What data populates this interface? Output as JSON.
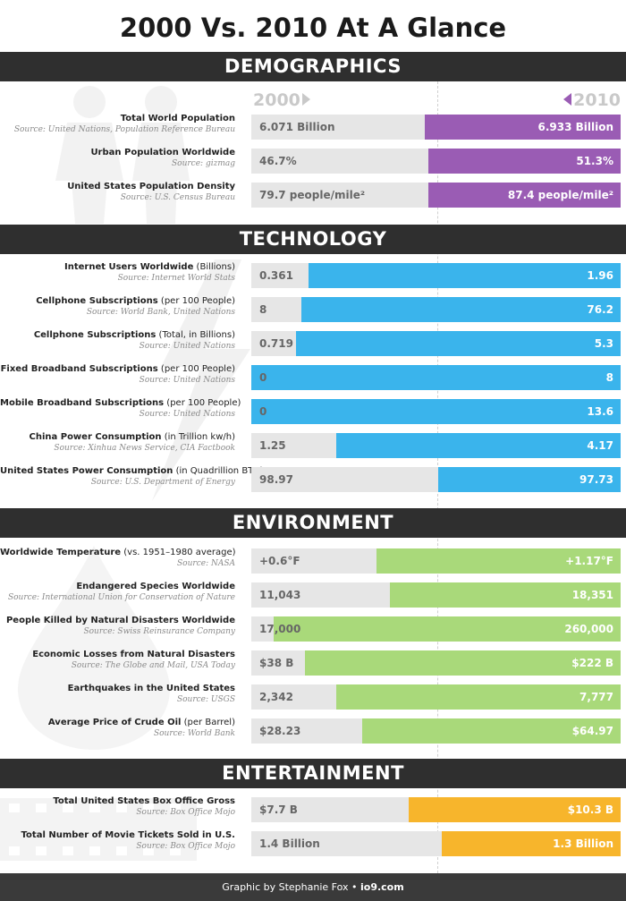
{
  "title": "2000 Vs. 2010 At A Glance",
  "year_labels": {
    "y2000": "2000",
    "y2010": "2010"
  },
  "colors": {
    "demographics": "#9a5cb4",
    "technology": "#3ab4ec",
    "environment": "#a9d97a",
    "entertainment": "#f7b52c"
  },
  "footer": {
    "credit": "Graphic by Stephanie Fox",
    "sep": "•",
    "site": "io9.com"
  },
  "chart_data": {
    "type": "bar",
    "sections": [
      {
        "name": "DEMOGRAPHICS",
        "color": "#9a5cb4",
        "rows": [
          {
            "label": "Total World Population",
            "sub": "",
            "source": "Source: United Nations, Population Reference Bureau",
            "v2000": "6.071 Billion",
            "v2010": "6.933 Billion",
            "fill": 0.53
          },
          {
            "label": "Urban Population Worldwide",
            "sub": "",
            "source": "Source: gizmag",
            "v2000": "46.7%",
            "v2010": "51.3%",
            "fill": 0.52
          },
          {
            "label": "United States Population Density",
            "sub": "",
            "source": "Source: U.S. Census Bureau",
            "v2000": "79.7 people/mile²",
            "v2010": "87.4 people/mile²",
            "fill": 0.52
          }
        ]
      },
      {
        "name": "TECHNOLOGY",
        "color": "#3ab4ec",
        "rows": [
          {
            "label": "Internet Users Worldwide",
            "sub": " (Billions)",
            "source": "Source: Internet World Stats",
            "v2000": "0.361",
            "v2010": "1.96",
            "fill": 0.845
          },
          {
            "label": "Cellphone Subscriptions",
            "sub": " (per 100 People)",
            "source": "Source: World Bank, United Nations",
            "v2000": "8",
            "v2010": "76.2",
            "fill": 0.865
          },
          {
            "label": "Cellphone Subscriptions",
            "sub": " (Total, in Billions)",
            "source": "Source: United Nations",
            "v2000": "0.719",
            "v2010": "5.3",
            "fill": 0.88
          },
          {
            "label": "Fixed Broadband Subscriptions",
            "sub": " (per 100 People)",
            "source": "Source: United Nations",
            "v2000": "0",
            "v2010": "8",
            "fill": 1.0
          },
          {
            "label": "Mobile Broadband Subscriptions",
            "sub": " (per 100 People)",
            "source": "Source: United Nations",
            "v2000": "0",
            "v2010": "13.6",
            "fill": 1.0
          },
          {
            "label": "China Power Consumption",
            "sub": " (in Trillion kw/h)",
            "source": "Source: Xinhua News Service, CIA Factbook",
            "v2000": "1.25",
            "v2010": "4.17",
            "fill": 0.77
          },
          {
            "label": "United States Power Consumption",
            "sub": " (in Quadrillion BTU)",
            "source": "Source: U.S. Department of Energy",
            "v2000": "98.97",
            "v2010": "97.73",
            "fill": 0.495
          }
        ]
      },
      {
        "name": "ENVIRONMENT",
        "color": "#a9d97a",
        "rows": [
          {
            "label": "Worldwide Temperature",
            "sub": " (vs. 1951–1980 average)",
            "source": "Source: NASA",
            "v2000": "+0.6°F",
            "v2010": "+1.17°F",
            "fill": 0.66
          },
          {
            "label": "Endangered Species Worldwide",
            "sub": "",
            "source": "Source: International Union for Conservation of Nature",
            "v2000": "11,043",
            "v2010": "18,351",
            "fill": 0.625
          },
          {
            "label": "People Killed by Natural Disasters Worldwide",
            "sub": "",
            "source": "Source: Swiss Reinsurance Company",
            "v2000": "17,000",
            "v2010": "260,000",
            "fill": 0.94
          },
          {
            "label": "Economic Losses from Natural Disasters",
            "sub": "",
            "source": "Source: The Globe and Mail, USA Today",
            "v2000": "$38 B",
            "v2010": "$222 B",
            "fill": 0.855
          },
          {
            "label": "Earthquakes in the United States",
            "sub": "",
            "source": "Source: USGS",
            "v2000": "2,342",
            "v2010": "7,777",
            "fill": 0.77
          },
          {
            "label": "Average Price of Crude Oil",
            "sub": " (per Barrel)",
            "source": "Source: World Bank",
            "v2000": "$28.23",
            "v2010": "$64.97",
            "fill": 0.7
          }
        ]
      },
      {
        "name": "ENTERTAINMENT",
        "color": "#f7b52c",
        "rows": [
          {
            "label": "Total United States Box Office Gross",
            "sub": "",
            "source": "Source: Box Office Mojo",
            "v2000": "$7.7 B",
            "v2010": "$10.3 B",
            "fill": 0.575
          },
          {
            "label": "Total Number of Movie Tickets Sold in U.S.",
            "sub": "",
            "source": "Source: Box Office Mojo",
            "v2000": "1.4 Billion",
            "v2010": "1.3 Billion",
            "fill": 0.485
          }
        ]
      }
    ]
  }
}
